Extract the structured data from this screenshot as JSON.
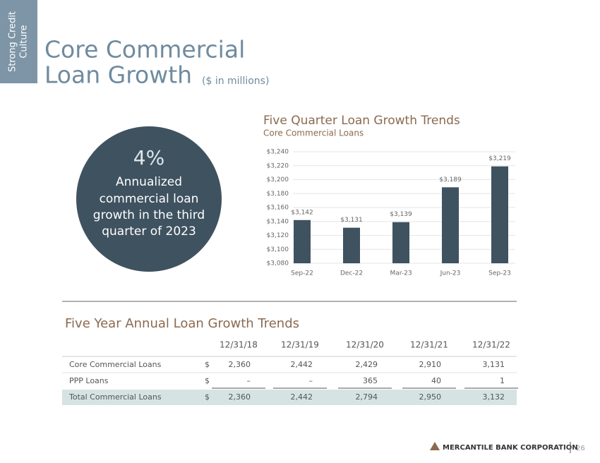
{
  "sidebar": {
    "lines": [
      "Strong Credit",
      "Culture"
    ]
  },
  "header": {
    "title_lines": [
      "Core Commercial",
      "Loan Growth"
    ],
    "subtitle": "($ in millions)"
  },
  "callout": {
    "figure": "4%",
    "lines": [
      "Annualized",
      "commercial loan",
      "growth in the third",
      "quarter of 2023"
    ]
  },
  "chart_data": {
    "type": "bar",
    "title": "Five Quarter Loan Growth Trends",
    "subtitle": "Core Commercial Loans",
    "categories": [
      "Sep-22",
      "Dec-22",
      "Mar-23",
      "Jun-23",
      "Sep-23"
    ],
    "values": [
      3142,
      3131,
      3139,
      3189,
      3219
    ],
    "value_labels": [
      "$3,142",
      "$3,131",
      "$3,139",
      "$3,189",
      "$3,219"
    ],
    "color": "#3f5260",
    "ylim": [
      3080,
      3240
    ],
    "yticks": [
      {
        "value": 3080,
        "label": "$3,080"
      },
      {
        "value": 3100,
        "label": "$3,100"
      },
      {
        "value": 3120,
        "label": "$3,120"
      },
      {
        "value": 3140,
        "label": "$3,140"
      },
      {
        "value": 3160,
        "label": "$3,160"
      },
      {
        "value": 3180,
        "label": "$3,180"
      },
      {
        "value": 3200,
        "label": "$3,200"
      },
      {
        "value": 3220,
        "label": "$3,220"
      },
      {
        "value": 3240,
        "label": "$3,240"
      }
    ],
    "grid": true
  },
  "table": {
    "title": "Five Year Annual Loan Growth Trends",
    "columns": [
      "12/31/18",
      "12/31/19",
      "12/31/20",
      "12/31/21",
      "12/31/22"
    ],
    "rows": [
      [
        "Core Commercial Loans",
        "$",
        "2,360",
        "2,442",
        "2,429",
        "2,910",
        "3,131"
      ],
      [
        "PPP Loans",
        "$",
        "–",
        "–",
        "365",
        "40",
        "1"
      ],
      [
        "Total Commercial Loans",
        "$",
        "2,360",
        "2,442",
        "2,794",
        "2,950",
        "3,132"
      ]
    ]
  },
  "footer": {
    "company": "MERCANTILE BANK CORPORATION",
    "page": "26"
  }
}
